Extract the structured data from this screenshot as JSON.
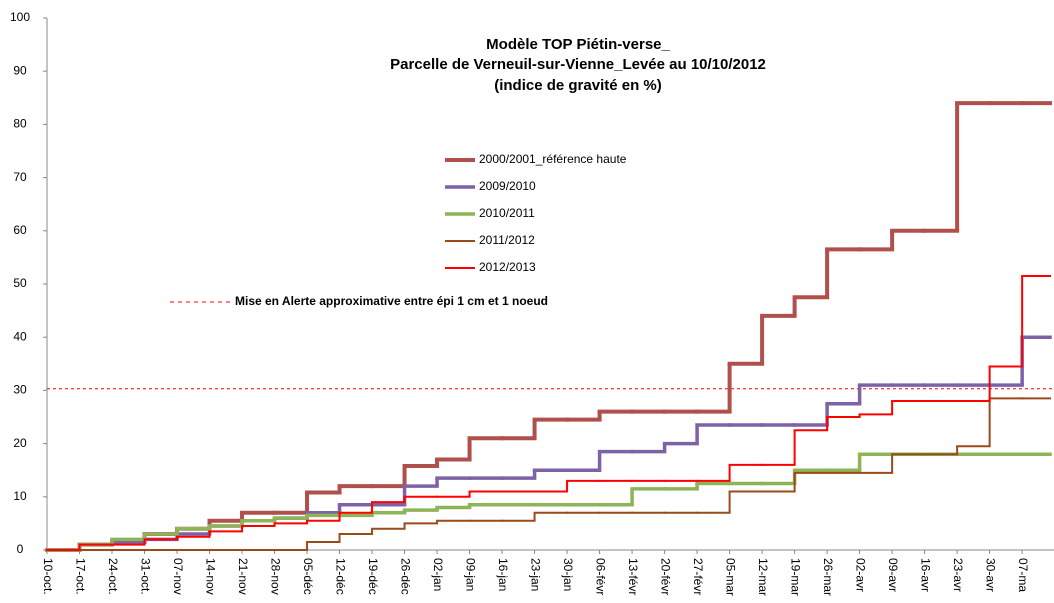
{
  "chart_data": {
    "type": "line",
    "step": true,
    "title": [
      "Modèle TOP Piétin-verse_",
      "Parcelle de Verneuil-sur-Vienne_Levée au 10/10/2012",
      "(indice de gravité en %)"
    ],
    "x": [
      0,
      7,
      14,
      21,
      28,
      35,
      42,
      49,
      56,
      63,
      70,
      77,
      84,
      91,
      98,
      105,
      112,
      119,
      126,
      133,
      140,
      147,
      154,
      161,
      168,
      175,
      182,
      189,
      196,
      203,
      210
    ],
    "xlim": [
      0,
      216
    ],
    "xticks": [
      {
        "value": 0,
        "label": "10-oct."
      },
      {
        "value": 7,
        "label": "17-oct."
      },
      {
        "value": 14,
        "label": "24-oct."
      },
      {
        "value": 21,
        "label": "31-oct."
      },
      {
        "value": 28,
        "label": "07-nov"
      },
      {
        "value": 35,
        "label": "14-nov"
      },
      {
        "value": 42,
        "label": "21-nov"
      },
      {
        "value": 49,
        "label": "28-nov"
      },
      {
        "value": 56,
        "label": "05-déc"
      },
      {
        "value": 63,
        "label": "12-déc"
      },
      {
        "value": 70,
        "label": "19-déc"
      },
      {
        "value": 77,
        "label": "26-déc"
      },
      {
        "value": 84,
        "label": "02-jan"
      },
      {
        "value": 91,
        "label": "09-jan"
      },
      {
        "value": 98,
        "label": "16-jan"
      },
      {
        "value": 105,
        "label": "23-jan"
      },
      {
        "value": 112,
        "label": "30-jan"
      },
      {
        "value": 119,
        "label": "06-févr"
      },
      {
        "value": 126,
        "label": "13-févr"
      },
      {
        "value": 133,
        "label": "20-févr"
      },
      {
        "value": 140,
        "label": "27-févr"
      },
      {
        "value": 147,
        "label": "05-mar"
      },
      {
        "value": 154,
        "label": "12-mar"
      },
      {
        "value": 161,
        "label": "19-mar"
      },
      {
        "value": 168,
        "label": "26-mar"
      },
      {
        "value": 175,
        "label": "02-avr"
      },
      {
        "value": 182,
        "label": "09-avr"
      },
      {
        "value": 189,
        "label": "16-avr"
      },
      {
        "value": 196,
        "label": "23-avr"
      },
      {
        "value": 203,
        "label": "30-avr"
      },
      {
        "value": 210,
        "label": "07-ma"
      }
    ],
    "ylim": [
      0,
      100
    ],
    "yticks": [
      0,
      10,
      20,
      30,
      40,
      50,
      60,
      70,
      80,
      90,
      100
    ],
    "series": [
      {
        "name": "2000/2001_référence haute",
        "color": "#b0504d",
        "width": 4,
        "values": [
          0,
          1,
          1.5,
          3,
          4,
          5.5,
          7,
          7,
          10.8,
          12,
          12,
          15.8,
          17,
          21,
          21,
          24.5,
          24.5,
          26,
          26,
          26,
          26,
          35,
          44,
          47.5,
          56.5,
          56.5,
          60,
          60,
          84,
          84,
          84
        ]
      },
      {
        "name": "2009/2010",
        "color": "#7d62a8",
        "width": 3.5,
        "values": [
          0,
          1,
          1.5,
          2,
          3,
          4.5,
          5.5,
          6,
          7,
          8.5,
          8.5,
          12,
          13.5,
          13.5,
          13.5,
          15,
          15,
          18.5,
          18.5,
          20,
          23.5,
          23.5,
          23.5,
          23.5,
          27.5,
          31,
          31,
          31,
          31,
          31,
          40
        ]
      },
      {
        "name": "2010/2011",
        "color": "#8fb457",
        "width": 3.5,
        "values": [
          0,
          1,
          2,
          3,
          4,
          4.5,
          5.5,
          6,
          6.5,
          6.5,
          7,
          7.5,
          8,
          8.5,
          8.5,
          8.5,
          8.5,
          8.5,
          11.5,
          11.5,
          12.5,
          12.5,
          12.5,
          15,
          15,
          18,
          18,
          18,
          18,
          18,
          18
        ]
      },
      {
        "name": "2011/2012",
        "color": "#9c4a1a",
        "width": 2,
        "values": [
          0,
          0,
          0,
          0,
          0,
          0,
          0,
          0,
          1.5,
          3,
          4,
          5,
          5.5,
          5.5,
          5.5,
          7,
          7,
          7,
          7,
          7,
          7,
          11,
          11,
          14.5,
          14.5,
          14.5,
          18,
          18,
          19.5,
          28.5,
          28.5
        ]
      },
      {
        "name": "2012/2013",
        "color": "#ff0000",
        "width": 2,
        "values": [
          0,
          1,
          1,
          2,
          2.5,
          3.5,
          4.5,
          5,
          5.5,
          7,
          9,
          10,
          10,
          11,
          11,
          11,
          13,
          13,
          13,
          13,
          13,
          16,
          16,
          22.5,
          25,
          25.5,
          28,
          28,
          28,
          34.5,
          51.5
        ]
      }
    ],
    "threshold": {
      "value": 30.3,
      "label": "Mise en Alerte approximative entre épi 1 cm et 1 noeud",
      "color": "#ff0000"
    }
  }
}
